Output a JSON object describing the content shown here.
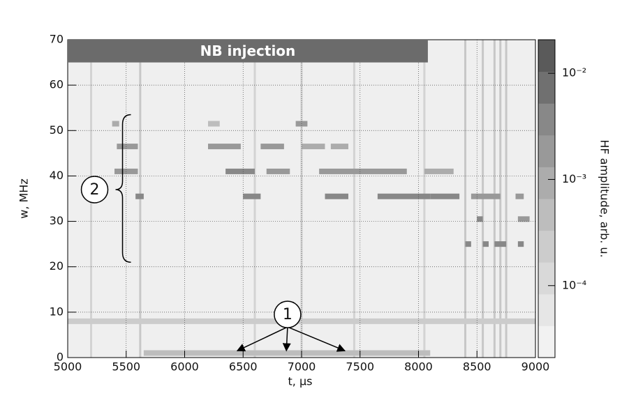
{
  "chart_data": {
    "type": "spectrogram",
    "x_label": "t, μs",
    "y_label": "w, MHz",
    "colorbar_label": "HF amplitude, arb. u.",
    "xlim": [
      5000,
      9000
    ],
    "xticks": [
      5000,
      5500,
      6000,
      6500,
      7000,
      7500,
      8000,
      8500,
      9000
    ],
    "ylim": [
      0,
      70
    ],
    "yticks": [
      0,
      10,
      20,
      30,
      40,
      50,
      60,
      70
    ],
    "zlim": [
      2.1e-05,
      0.0207
    ],
    "zlog": true,
    "zticks": [
      {
        "value": 0.0001,
        "label": "10⁻⁴"
      },
      {
        "value": 0.001,
        "label": "10⁻³"
      },
      {
        "value": 0.01,
        "label": "10⁻²"
      }
    ],
    "colors": [
      "#f2f2f2",
      "#e6e6e6",
      "#d9d9d9",
      "#cccccc",
      "#bdbdbd",
      "#acacac",
      "#999999",
      "#888888",
      "#707070",
      "#5a5a5a"
    ],
    "grid": true,
    "bands": [
      {
        "t0": 5380,
        "t1": 5440,
        "w": 51.5,
        "amplitude": 0.001
      },
      {
        "t0": 6200,
        "t1": 6300,
        "w": 51.5,
        "amplitude": 0.0005
      },
      {
        "t0": 6950,
        "t1": 7050,
        "w": 51.5,
        "amplitude": 0.002
      },
      {
        "t0": 5420,
        "t1": 5600,
        "w": 46.5,
        "amplitude": 0.002
      },
      {
        "t0": 6200,
        "t1": 6480,
        "w": 46.5,
        "amplitude": 0.002
      },
      {
        "t0": 6650,
        "t1": 6850,
        "w": 46.5,
        "amplitude": 0.002
      },
      {
        "t0": 7000,
        "t1": 7200,
        "w": 46.5,
        "amplitude": 0.001
      },
      {
        "t0": 7250,
        "t1": 7400,
        "w": 46.5,
        "amplitude": 0.001
      },
      {
        "t0": 5400,
        "t1": 5600,
        "w": 41,
        "amplitude": 0.002
      },
      {
        "t0": 6350,
        "t1": 6600,
        "w": 41,
        "amplitude": 0.003
      },
      {
        "t0": 6700,
        "t1": 6900,
        "w": 41,
        "amplitude": 0.002
      },
      {
        "t0": 7150,
        "t1": 7900,
        "w": 41,
        "amplitude": 0.002
      },
      {
        "t0": 8050,
        "t1": 8300,
        "w": 41,
        "amplitude": 0.001
      },
      {
        "t0": 5580,
        "t1": 5650,
        "w": 35.5,
        "amplitude": 0.003
      },
      {
        "t0": 6500,
        "t1": 6650,
        "w": 35.5,
        "amplitude": 0.005
      },
      {
        "t0": 7200,
        "t1": 7400,
        "w": 35.5,
        "amplitude": 0.003
      },
      {
        "t0": 7650,
        "t1": 8100,
        "w": 35.5,
        "amplitude": 0.004
      },
      {
        "t0": 8100,
        "t1": 8350,
        "w": 35.5,
        "amplitude": 0.003
      },
      {
        "t0": 8450,
        "t1": 8700,
        "w": 35.5,
        "amplitude": 0.002
      },
      {
        "t0": 8830,
        "t1": 8900,
        "w": 35.5,
        "amplitude": 0.002
      },
      {
        "t0": 8500,
        "t1": 8550,
        "w": 30.5,
        "amplitude": 0.003
      },
      {
        "t0": 8850,
        "t1": 8950,
        "w": 30.5,
        "amplitude": 0.002
      },
      {
        "t0": 8400,
        "t1": 8450,
        "w": 25,
        "amplitude": 0.003
      },
      {
        "t0": 8550,
        "t1": 8600,
        "w": 25,
        "amplitude": 0.003
      },
      {
        "t0": 8650,
        "t1": 8750,
        "w": 25,
        "amplitude": 0.003
      },
      {
        "t0": 8850,
        "t1": 8900,
        "w": 25,
        "amplitude": 0.003
      },
      {
        "t0": 5000,
        "t1": 9000,
        "w": 8,
        "amplitude": 0.0002
      },
      {
        "t0": 5650,
        "t1": 8100,
        "w": 1,
        "amplitude": 0.0004
      }
    ],
    "streaks": [
      {
        "t": 5200,
        "amplitude": 0.0003
      },
      {
        "t": 5620,
        "amplitude": 0.0004
      },
      {
        "t": 6600,
        "amplitude": 0.0003
      },
      {
        "t": 7000,
        "amplitude": 0.0003
      },
      {
        "t": 7450,
        "amplitude": 0.0003
      },
      {
        "t": 8050,
        "amplitude": 0.0003
      },
      {
        "t": 8400,
        "amplitude": 0.0006
      },
      {
        "t": 8550,
        "amplitude": 0.0004
      },
      {
        "t": 8650,
        "amplitude": 0.0004
      },
      {
        "t": 8700,
        "amplitude": 0.0005
      },
      {
        "t": 8750,
        "amplitude": 0.0004
      }
    ],
    "injection": {
      "label": "NB injection",
      "t0": 5000,
      "t1": 8080,
      "w0": 65,
      "w1": 70
    },
    "marker_1": {
      "label": "1",
      "t": 6880,
      "w": 9.5,
      "targets": [
        6450,
        6870,
        7370
      ],
      "target_w": 1.5
    },
    "marker_2": {
      "label": "2",
      "t": 5230,
      "w": 37,
      "w0": 21,
      "w1": 53.5
    }
  }
}
